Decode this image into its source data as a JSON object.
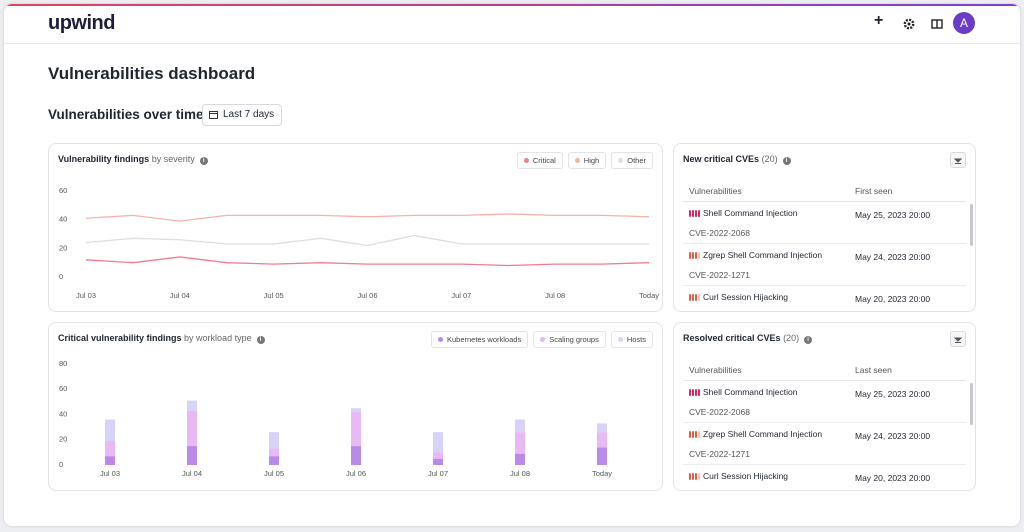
{
  "header": {
    "logo": "upwind",
    "avatar": "A"
  },
  "page_title": "Vulnerabilities dashboard",
  "section_title": "Vulnerabilities over time",
  "date_range": "Last 7 days",
  "chart_data": [
    {
      "type": "line",
      "title": "Vulnerability findings",
      "subtitle": "by severity",
      "categories": [
        "Jul 03",
        null,
        "Jul 04",
        null,
        "Jul 05",
        null,
        "Jul 06",
        null,
        "Jul 07",
        null,
        "Jul 08",
        null,
        "Today"
      ],
      "series": [
        {
          "name": "Critical",
          "color": "#ef7d8f",
          "values": [
            12,
            10,
            14,
            10,
            9,
            10,
            9,
            9,
            9,
            8,
            9,
            9,
            10
          ]
        },
        {
          "name": "High",
          "color": "#f6b2a8",
          "values": [
            41,
            43,
            39,
            43,
            43,
            43,
            42,
            43,
            43,
            44,
            43,
            43,
            42
          ]
        },
        {
          "name": "Other",
          "color": "#e2dcdc",
          "values": [
            24,
            27,
            26,
            23,
            23,
            27,
            22,
            29,
            23,
            23,
            23,
            23,
            23
          ]
        }
      ],
      "ylim": [
        0,
        60
      ],
      "yticks": [
        0,
        20,
        40,
        60
      ],
      "grid": false
    },
    {
      "type": "bar",
      "stacked": true,
      "title": "Critical vulnerability findings",
      "subtitle": "by workload type",
      "categories": [
        "Jul 03",
        "Jul 04",
        "Jul 05",
        "Jul 06",
        "Jul 07",
        "Jul 08",
        "Today"
      ],
      "series": [
        {
          "name": "Kubernetes workloads",
          "color": "#b98ae9",
          "values": [
            7,
            15,
            7,
            15,
            5,
            9,
            14
          ]
        },
        {
          "name": "Scaling groups",
          "color": "#e9b9f5",
          "values": [
            12,
            28,
            6,
            27,
            5,
            17,
            12
          ]
        },
        {
          "name": "Hosts",
          "color": "#d6d2f8",
          "values": [
            17,
            8,
            13,
            3,
            16,
            10,
            7
          ]
        }
      ],
      "ylim": [
        0,
        80
      ],
      "yticks": [
        0,
        20,
        40,
        60,
        80
      ],
      "grid": false
    }
  ],
  "tables": [
    {
      "title": "New critical CVEs",
      "count": "(20)",
      "columns": [
        "Vulnerabilities",
        "First seen"
      ],
      "rows": [
        {
          "name": "Shell Command Injection",
          "id": "CVE-2022-2068",
          "date": "May 25, 2023 20:00"
        },
        {
          "name": "Zgrep Shell Command Injection",
          "id": "CVE-2022-1271",
          "date": "May 24, 2023 20:00"
        },
        {
          "name": "Curl Session Hijacking",
          "date": "May 20, 2023 20:00"
        }
      ]
    },
    {
      "title": "Resolved critical CVEs",
      "count": "(20)",
      "columns": [
        "Vulnerabilities",
        "Last seen"
      ],
      "rows": [
        {
          "name": "Shell Command Injection",
          "id": "CVE-2022-2068",
          "date": "May 25, 2023 20:00"
        },
        {
          "name": "Zgrep Shell Command Injection",
          "id": "CVE-2022-1271",
          "date": "May 24, 2023 20:00"
        },
        {
          "name": "Curl Session Hijacking",
          "date": "May 20, 2023 20:00"
        }
      ]
    }
  ]
}
